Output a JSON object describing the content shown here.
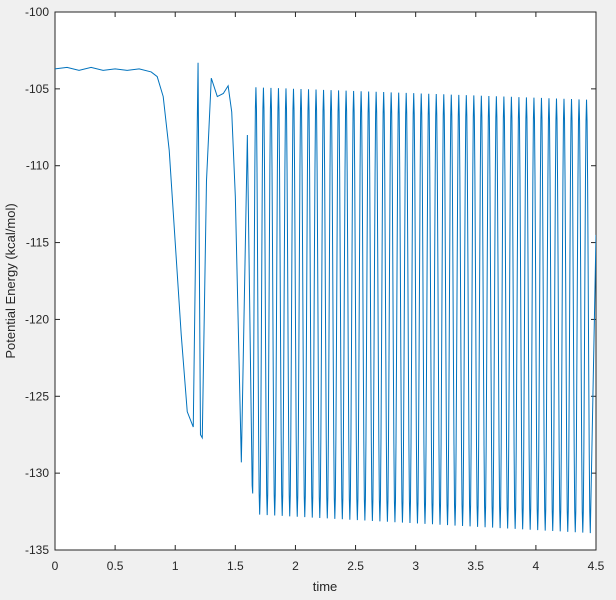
{
  "chart_data": {
    "type": "line",
    "title": "",
    "xlabel": "time",
    "ylabel": "Potential Energy (kcal/mol)",
    "xlim": [
      0,
      4.5
    ],
    "ylim": [
      -135,
      -100
    ],
    "xticks": [
      0,
      0.5,
      1,
      1.5,
      2,
      2.5,
      3,
      3.5,
      4,
      4.5
    ],
    "xtick_labels": [
      "0",
      "0.5",
      "1",
      "1.5",
      "2",
      "2.5",
      "3",
      "3.5",
      "4",
      "4.5"
    ],
    "yticks": [
      -100,
      -105,
      -110,
      -115,
      -120,
      -125,
      -130,
      -135
    ],
    "ytick_labels": [
      "-100",
      "-105",
      "-110",
      "-115",
      "-120",
      "-125",
      "-130",
      "-135"
    ],
    "grid": false,
    "legend": "none",
    "series": [
      {
        "color": "#0072bd",
        "x": [
          0,
          0.1,
          0.2,
          0.3,
          0.4,
          0.5,
          0.6,
          0.7,
          0.8,
          0.85,
          0.9,
          0.95,
          1.0,
          1.05,
          1.1,
          1.15,
          1.19,
          1.21,
          1.225,
          1.26,
          1.3,
          1.35,
          1.4,
          1.44,
          1.47,
          1.5,
          1.55,
          1.6,
          1.64
        ],
        "y": [
          -103.7,
          -103.6,
          -103.8,
          -103.6,
          -103.8,
          -103.7,
          -103.8,
          -103.7,
          -103.9,
          -104.2,
          -105.5,
          -109,
          -115,
          -121,
          -126,
          -127,
          -103.3,
          -127.5,
          -127.7,
          -111,
          -104.3,
          -105.5,
          -105.3,
          -104.8,
          -106.5,
          -112,
          -129.3,
          -108,
          -130.8
        ]
      }
    ],
    "oscillation": {
      "start": 1.64,
      "end": 4.5,
      "period": 0.0625,
      "peak_start": -104.9,
      "peak_end": -105.7,
      "trough_start": -132.7,
      "trough_end": -133.9
    }
  }
}
